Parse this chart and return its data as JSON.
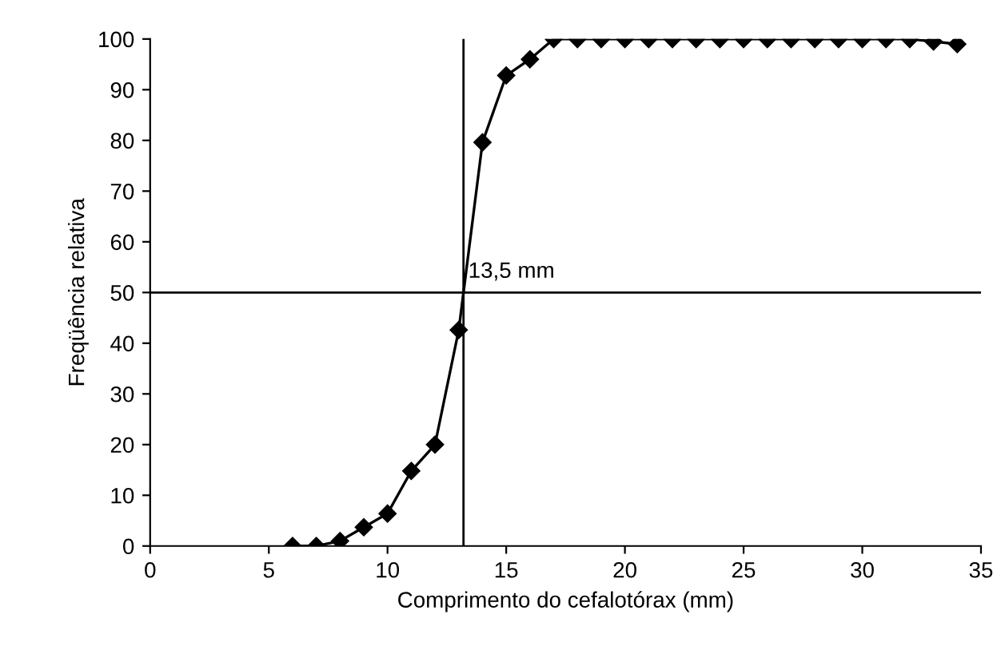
{
  "chart_data": {
    "type": "line",
    "xlabel": "Comprimento do cefalotórax (mm)",
    "ylabel": "Freqüência relativa",
    "x": [
      6,
      7,
      8,
      9,
      10,
      11,
      12,
      13,
      14,
      15,
      16,
      17,
      18,
      19,
      20,
      21,
      22,
      23,
      24,
      25,
      26,
      27,
      28,
      29,
      30,
      31,
      32,
      33,
      34
    ],
    "series": [
      {
        "color": "#000000",
        "values": [
          0,
          0,
          1,
          3.7,
          6.4,
          14.8,
          20,
          42.6,
          79.6,
          92.8,
          96,
          100,
          100,
          100,
          100,
          100,
          100,
          100,
          100,
          100,
          100,
          100,
          100,
          100,
          100,
          100,
          100,
          99.5,
          99
        ]
      }
    ],
    "xlim": [
      0,
      35
    ],
    "xticks": [
      0,
      5,
      10,
      15,
      20,
      25,
      30,
      35
    ],
    "ylim": [
      0,
      100
    ],
    "yticks": [
      0,
      10,
      20,
      30,
      40,
      50,
      60,
      70,
      80,
      90,
      100
    ],
    "ref_lines": [
      {
        "axis": "y",
        "value": 50,
        "color": "#000000"
      },
      {
        "axis": "x",
        "value": 13.2,
        "label": "13,5 mm",
        "color": "#000000"
      }
    ],
    "marker": "diamond",
    "line_style": "solid",
    "grid": false,
    "legend": false
  }
}
